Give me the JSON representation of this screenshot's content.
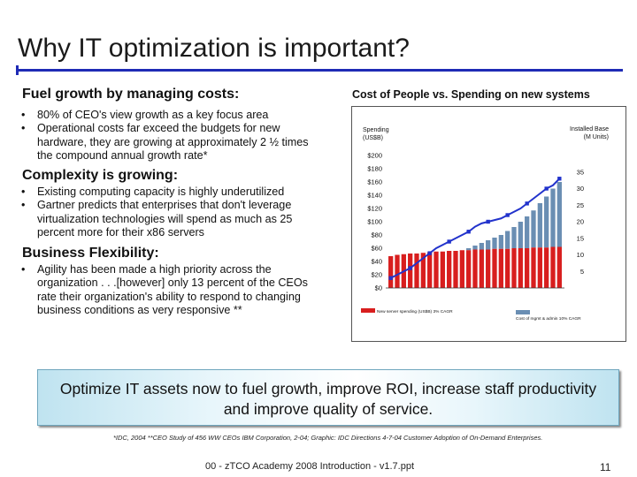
{
  "slide": {
    "title": "Why IT optimization is important?",
    "footnote": "*IDC, 2004 **CEO Study of 456 WW CEOs IBM Corporation, 2-04; Graphic: IDC Directions 4-7-04 Customer Adoption of On-Demand Enterprises.",
    "footer": "00 - zTCO Academy 2008 Introduction - v1.7.ppt",
    "page_number": "11"
  },
  "left": {
    "sections": [
      {
        "heading": "Fuel growth by managing costs:",
        "bullets": [
          "80% of CEO's view growth as a key focus area",
          "Operational costs far exceed the budgets for new hardware, they are growing at approximately 2 ½ times the compound annual growth rate*"
        ]
      },
      {
        "heading": "Complexity is growing:",
        "bullets": [
          "Existing computing capacity is highly underutilized",
          "Gartner predicts that enterprises that don't leverage virtualization technologies will spend as much as 25 percent more for their x86 servers"
        ]
      },
      {
        "heading": "Business Flexibility:",
        "bullets": [
          "Agility has been made a high priority across the organization . . .[however] only 13 percent of the CEOs rate their organization's ability to respond to changing business conditions as very responsive **"
        ]
      }
    ]
  },
  "banner": {
    "text": "Optimize IT assets now to fuel growth, improve ROI, increase staff productivity and improve quality of service."
  },
  "chart_data": {
    "type": "bar",
    "title": "Cost of People vs. Spending on new systems",
    "y_left_label": "Spending (US$B)",
    "y_right_label": "Installed Base (M Units)",
    "y_left_ticks": [
      "$0",
      "$20",
      "$40",
      "$60",
      "$80",
      "$100",
      "$120",
      "$140",
      "$160",
      "$180",
      "$200"
    ],
    "y_right_ticks": [
      "5",
      "10",
      "15",
      "20",
      "25",
      "30",
      "35"
    ],
    "ylim_left": [
      0,
      200
    ],
    "ylim_right": [
      0,
      40
    ],
    "legend": [
      {
        "label": "New server spending (US$B) 3% CAGR",
        "color": "#d81e1e"
      },
      {
        "label": "Cost of mgmt & admin 10% CAGR",
        "color": "#6a8eb3"
      }
    ],
    "series": [
      {
        "name": "New server spending (US$B) 3% CAGR",
        "kind": "bar-segment",
        "values": [
          48,
          50,
          51,
          52,
          52,
          53,
          54,
          55,
          55,
          56,
          56,
          57,
          57,
          58,
          58,
          58,
          59,
          59,
          59,
          60,
          60,
          60,
          61,
          61,
          61,
          62,
          62
        ]
      },
      {
        "name": "Cost of mgmt & admin 10% CAGR",
        "kind": "bar-total",
        "values": [
          16,
          20,
          22,
          24,
          27,
          30,
          35,
          40,
          44,
          48,
          52,
          56,
          60,
          64,
          68,
          72,
          76,
          80,
          86,
          92,
          100,
          108,
          117,
          128,
          138,
          150,
          160
        ]
      },
      {
        "name": "Installed Base (M Units)",
        "kind": "line",
        "axis": "right",
        "values": [
          3,
          4,
          5,
          6,
          7.5,
          9,
          10.5,
          12,
          13,
          14,
          15,
          16,
          17,
          18.5,
          19.5,
          20,
          20.5,
          21,
          22,
          23,
          24,
          25.5,
          27,
          28.5,
          30,
          31,
          33
        ]
      }
    ],
    "colors": {
      "spending": "#d81e1e",
      "mgmt": "#6a8eb3",
      "line": "#2233cc"
    }
  }
}
